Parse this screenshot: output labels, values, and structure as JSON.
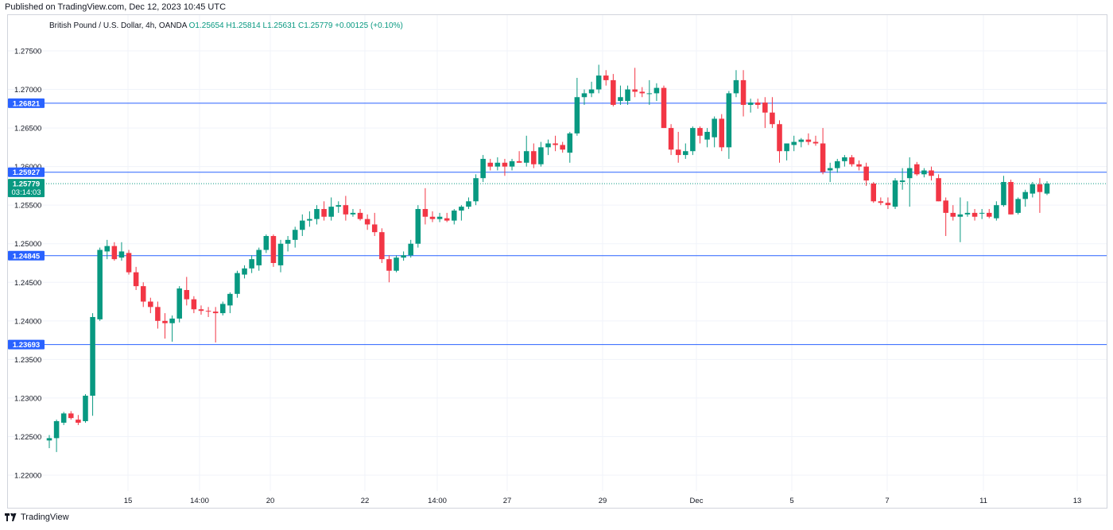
{
  "header": {
    "published": "Published on TradingView.com, Dec 12, 2023 10:45 UTC"
  },
  "legend": {
    "symbol": "British Pound / U.S. Dollar, 4h, OANDA",
    "open": "O1.25654",
    "high": "H1.25814",
    "low": "L1.25631",
    "close": "C1.25779",
    "change": "+0.00125 (+0.10%)"
  },
  "footer": {
    "brand": "TradingView"
  },
  "colors": {
    "up": "#089981",
    "down": "#f23645",
    "hline": "#2962ff",
    "grid": "#f0f3fa"
  },
  "chart_data": {
    "type": "candlestick",
    "ylim": [
      1.2175,
      1.2785
    ],
    "yticks": [
      "1.27500",
      "1.27000",
      "1.26500",
      "1.26000",
      "1.25500",
      "1.25000",
      "1.24500",
      "1.24000",
      "1.23500",
      "1.23000",
      "1.22500",
      "1.22000"
    ],
    "xticks": [
      "15",
      "14:00",
      "20",
      "22",
      "14:00",
      "27",
      "29",
      "Dec",
      "5",
      "7",
      "11",
      "13"
    ],
    "horizontal_lines": [
      1.26821,
      1.25927,
      1.24845,
      1.23693
    ],
    "horizontal_line_labels": [
      "1.26821",
      "1.25927",
      "1.24845",
      "1.23693"
    ],
    "last_price": {
      "value": 1.25779,
      "label": "1.25779",
      "countdown": "03:14:03"
    },
    "candles": [
      {
        "o": 1.2245,
        "h": 1.2252,
        "l": 1.2235,
        "c": 1.2248
      },
      {
        "o": 1.2248,
        "h": 1.2272,
        "l": 1.223,
        "c": 1.227
      },
      {
        "o": 1.2268,
        "h": 1.2282,
        "l": 1.2265,
        "c": 1.228
      },
      {
        "o": 1.228,
        "h": 1.2283,
        "l": 1.2272,
        "c": 1.2274
      },
      {
        "o": 1.2272,
        "h": 1.2278,
        "l": 1.2265,
        "c": 1.2268
      },
      {
        "o": 1.227,
        "h": 1.2305,
        "l": 1.2268,
        "c": 1.2303
      },
      {
        "o": 1.2303,
        "h": 1.241,
        "l": 1.2277,
        "c": 1.2405
      },
      {
        "o": 1.2402,
        "h": 1.2495,
        "l": 1.24,
        "c": 1.2492
      },
      {
        "o": 1.249,
        "h": 1.2505,
        "l": 1.248,
        "c": 1.2497
      },
      {
        "o": 1.2497,
        "h": 1.2502,
        "l": 1.2478,
        "c": 1.248
      },
      {
        "o": 1.2482,
        "h": 1.2502,
        "l": 1.2478,
        "c": 1.249
      },
      {
        "o": 1.2488,
        "h": 1.2492,
        "l": 1.246,
        "c": 1.2463
      },
      {
        "o": 1.2463,
        "h": 1.247,
        "l": 1.244,
        "c": 1.2445
      },
      {
        "o": 1.2445,
        "h": 1.245,
        "l": 1.2418,
        "c": 1.2425
      },
      {
        "o": 1.2425,
        "h": 1.243,
        "l": 1.241,
        "c": 1.2418
      },
      {
        "o": 1.2418,
        "h": 1.2425,
        "l": 1.239,
        "c": 1.24
      },
      {
        "o": 1.24,
        "h": 1.241,
        "l": 1.2377,
        "c": 1.2397
      },
      {
        "o": 1.2397,
        "h": 1.2407,
        "l": 1.2373,
        "c": 1.2403
      },
      {
        "o": 1.2403,
        "h": 1.2445,
        "l": 1.2398,
        "c": 1.2442
      },
      {
        "o": 1.244,
        "h": 1.2457,
        "l": 1.242,
        "c": 1.2428
      },
      {
        "o": 1.2428,
        "h": 1.2432,
        "l": 1.241,
        "c": 1.2415
      },
      {
        "o": 1.2415,
        "h": 1.242,
        "l": 1.2408,
        "c": 1.2413
      },
      {
        "o": 1.2413,
        "h": 1.2418,
        "l": 1.2405,
        "c": 1.2412
      },
      {
        "o": 1.2412,
        "h": 1.2418,
        "l": 1.2372,
        "c": 1.241
      },
      {
        "o": 1.241,
        "h": 1.2425,
        "l": 1.2407,
        "c": 1.2422
      },
      {
        "o": 1.242,
        "h": 1.2437,
        "l": 1.241,
        "c": 1.2435
      },
      {
        "o": 1.2435,
        "h": 1.2465,
        "l": 1.243,
        "c": 1.2462
      },
      {
        "o": 1.246,
        "h": 1.2472,
        "l": 1.2455,
        "c": 1.2468
      },
      {
        "o": 1.2468,
        "h": 1.2485,
        "l": 1.2462,
        "c": 1.248
      },
      {
        "o": 1.2472,
        "h": 1.2495,
        "l": 1.2465,
        "c": 1.2492
      },
      {
        "o": 1.2492,
        "h": 1.2512,
        "l": 1.2488,
        "c": 1.251
      },
      {
        "o": 1.251,
        "h": 1.2512,
        "l": 1.247,
        "c": 1.2475
      },
      {
        "o": 1.2472,
        "h": 1.2505,
        "l": 1.2463,
        "c": 1.25
      },
      {
        "o": 1.25,
        "h": 1.251,
        "l": 1.249,
        "c": 1.2505
      },
      {
        "o": 1.2505,
        "h": 1.2522,
        "l": 1.2495,
        "c": 1.2518
      },
      {
        "o": 1.2518,
        "h": 1.2538,
        "l": 1.251,
        "c": 1.253
      },
      {
        "o": 1.253,
        "h": 1.2542,
        "l": 1.2522,
        "c": 1.2532
      },
      {
        "o": 1.2532,
        "h": 1.255,
        "l": 1.2525,
        "c": 1.2545
      },
      {
        "o": 1.2545,
        "h": 1.2555,
        "l": 1.253,
        "c": 1.2535
      },
      {
        "o": 1.2535,
        "h": 1.256,
        "l": 1.253,
        "c": 1.2548
      },
      {
        "o": 1.2548,
        "h": 1.2555,
        "l": 1.254,
        "c": 1.255
      },
      {
        "o": 1.255,
        "h": 1.2562,
        "l": 1.253,
        "c": 1.2538
      },
      {
        "o": 1.2538,
        "h": 1.2545,
        "l": 1.2535,
        "c": 1.254
      },
      {
        "o": 1.254,
        "h": 1.2545,
        "l": 1.253,
        "c": 1.2532
      },
      {
        "o": 1.2532,
        "h": 1.2538,
        "l": 1.2518,
        "c": 1.2525
      },
      {
        "o": 1.2525,
        "h": 1.254,
        "l": 1.251,
        "c": 1.2515
      },
      {
        "o": 1.2515,
        "h": 1.252,
        "l": 1.2475,
        "c": 1.248
      },
      {
        "o": 1.248,
        "h": 1.2485,
        "l": 1.245,
        "c": 1.2465
      },
      {
        "o": 1.2465,
        "h": 1.2485,
        "l": 1.2463,
        "c": 1.2482
      },
      {
        "o": 1.2482,
        "h": 1.249,
        "l": 1.2478,
        "c": 1.2485
      },
      {
        "o": 1.2485,
        "h": 1.2505,
        "l": 1.2482,
        "c": 1.25
      },
      {
        "o": 1.25,
        "h": 1.255,
        "l": 1.2495,
        "c": 1.2545
      },
      {
        "o": 1.2545,
        "h": 1.2572,
        "l": 1.2525,
        "c": 1.2535
      },
      {
        "o": 1.2535,
        "h": 1.2542,
        "l": 1.2528,
        "c": 1.2532
      },
      {
        "o": 1.2532,
        "h": 1.254,
        "l": 1.2528,
        "c": 1.2535
      },
      {
        "o": 1.2533,
        "h": 1.254,
        "l": 1.2528,
        "c": 1.253
      },
      {
        "o": 1.253,
        "h": 1.2545,
        "l": 1.2525,
        "c": 1.2543
      },
      {
        "o": 1.2543,
        "h": 1.255,
        "l": 1.253,
        "c": 1.2548
      },
      {
        "o": 1.2548,
        "h": 1.256,
        "l": 1.2545,
        "c": 1.2555
      },
      {
        "o": 1.2555,
        "h": 1.259,
        "l": 1.255,
        "c": 1.2585
      },
      {
        "o": 1.2585,
        "h": 1.2615,
        "l": 1.258,
        "c": 1.261
      },
      {
        "o": 1.2605,
        "h": 1.261,
        "l": 1.2595,
        "c": 1.26
      },
      {
        "o": 1.26,
        "h": 1.2612,
        "l": 1.2595,
        "c": 1.2605
      },
      {
        "o": 1.2605,
        "h": 1.261,
        "l": 1.2588,
        "c": 1.26
      },
      {
        "o": 1.26,
        "h": 1.261,
        "l": 1.2595,
        "c": 1.2607
      },
      {
        "o": 1.2607,
        "h": 1.262,
        "l": 1.2605,
        "c": 1.2605
      },
      {
        "o": 1.2605,
        "h": 1.264,
        "l": 1.26,
        "c": 1.262
      },
      {
        "o": 1.262,
        "h": 1.263,
        "l": 1.2598,
        "c": 1.2603
      },
      {
        "o": 1.2603,
        "h": 1.2632,
        "l": 1.26,
        "c": 1.2625
      },
      {
        "o": 1.2625,
        "h": 1.2635,
        "l": 1.2615,
        "c": 1.263
      },
      {
        "o": 1.263,
        "h": 1.264,
        "l": 1.262,
        "c": 1.2628
      },
      {
        "o": 1.2628,
        "h": 1.2632,
        "l": 1.2618,
        "c": 1.2622
      },
      {
        "o": 1.2618,
        "h": 1.2645,
        "l": 1.2605,
        "c": 1.2643
      },
      {
        "o": 1.2643,
        "h": 1.2715,
        "l": 1.264,
        "c": 1.269
      },
      {
        "o": 1.269,
        "h": 1.27,
        "l": 1.268,
        "c": 1.2695
      },
      {
        "o": 1.2695,
        "h": 1.271,
        "l": 1.269,
        "c": 1.27
      },
      {
        "o": 1.27,
        "h": 1.2732,
        "l": 1.2695,
        "c": 1.2718
      },
      {
        "o": 1.2718,
        "h": 1.2725,
        "l": 1.2705,
        "c": 1.2712
      },
      {
        "o": 1.2712,
        "h": 1.272,
        "l": 1.2678,
        "c": 1.268
      },
      {
        "o": 1.2685,
        "h": 1.2705,
        "l": 1.268,
        "c": 1.269
      },
      {
        "o": 1.2685,
        "h": 1.2705,
        "l": 1.268,
        "c": 1.27
      },
      {
        "o": 1.27,
        "h": 1.2728,
        "l": 1.269,
        "c": 1.2697
      },
      {
        "o": 1.2697,
        "h": 1.2703,
        "l": 1.269,
        "c": 1.2695
      },
      {
        "o": 1.2695,
        "h": 1.2712,
        "l": 1.268,
        "c": 1.2695
      },
      {
        "o": 1.2695,
        "h": 1.2708,
        "l": 1.2685,
        "c": 1.2702
      },
      {
        "o": 1.2702,
        "h": 1.2705,
        "l": 1.265,
        "c": 1.265
      },
      {
        "o": 1.265,
        "h": 1.2655,
        "l": 1.2615,
        "c": 1.2622
      },
      {
        "o": 1.2622,
        "h": 1.2645,
        "l": 1.2605,
        "c": 1.2615
      },
      {
        "o": 1.2615,
        "h": 1.263,
        "l": 1.261,
        "c": 1.262
      },
      {
        "o": 1.262,
        "h": 1.2652,
        "l": 1.2615,
        "c": 1.265
      },
      {
        "o": 1.265,
        "h": 1.2652,
        "l": 1.263,
        "c": 1.264
      },
      {
        "o": 1.2635,
        "h": 1.265,
        "l": 1.2625,
        "c": 1.2645
      },
      {
        "o": 1.2638,
        "h": 1.2665,
        "l": 1.2625,
        "c": 1.2662
      },
      {
        "o": 1.2662,
        "h": 1.2668,
        "l": 1.262,
        "c": 1.2625
      },
      {
        "o": 1.2625,
        "h": 1.2698,
        "l": 1.261,
        "c": 1.2695
      },
      {
        "o": 1.2695,
        "h": 1.2725,
        "l": 1.269,
        "c": 1.2712
      },
      {
        "o": 1.2712,
        "h": 1.2725,
        "l": 1.2665,
        "c": 1.268
      },
      {
        "o": 1.268,
        "h": 1.2688,
        "l": 1.267,
        "c": 1.2683
      },
      {
        "o": 1.2683,
        "h": 1.2688,
        "l": 1.2675,
        "c": 1.268
      },
      {
        "o": 1.2683,
        "h": 1.269,
        "l": 1.265,
        "c": 1.267
      },
      {
        "o": 1.267,
        "h": 1.269,
        "l": 1.265,
        "c": 1.2655
      },
      {
        "o": 1.2655,
        "h": 1.266,
        "l": 1.2605,
        "c": 1.262
      },
      {
        "o": 1.262,
        "h": 1.263,
        "l": 1.2608,
        "c": 1.263
      },
      {
        "o": 1.2628,
        "h": 1.264,
        "l": 1.262,
        "c": 1.2632
      },
      {
        "o": 1.2632,
        "h": 1.2637,
        "l": 1.2625,
        "c": 1.2635
      },
      {
        "o": 1.2635,
        "h": 1.2643,
        "l": 1.2628,
        "c": 1.2632
      },
      {
        "o": 1.2632,
        "h": 1.264,
        "l": 1.2627,
        "c": 1.263
      },
      {
        "o": 1.263,
        "h": 1.265,
        "l": 1.259,
        "c": 1.2593
      },
      {
        "o": 1.2595,
        "h": 1.2605,
        "l": 1.258,
        "c": 1.2598
      },
      {
        "o": 1.2598,
        "h": 1.261,
        "l": 1.2592,
        "c": 1.2607
      },
      {
        "o": 1.2607,
        "h": 1.2615,
        "l": 1.26,
        "c": 1.2612
      },
      {
        "o": 1.2612,
        "h": 1.2615,
        "l": 1.26,
        "c": 1.2603
      },
      {
        "o": 1.2603,
        "h": 1.2608,
        "l": 1.2595,
        "c": 1.26
      },
      {
        "o": 1.26,
        "h": 1.2605,
        "l": 1.2575,
        "c": 1.2582
      },
      {
        "o": 1.2578,
        "h": 1.258,
        "l": 1.2553,
        "c": 1.2555
      },
      {
        "o": 1.2555,
        "h": 1.256,
        "l": 1.255,
        "c": 1.2553
      },
      {
        "o": 1.2553,
        "h": 1.256,
        "l": 1.2545,
        "c": 1.255
      },
      {
        "o": 1.2548,
        "h": 1.2585,
        "l": 1.2545,
        "c": 1.2582
      },
      {
        "o": 1.258,
        "h": 1.2598,
        "l": 1.257,
        "c": 1.2582
      },
      {
        "o": 1.2585,
        "h": 1.2612,
        "l": 1.2548,
        "c": 1.2598
      },
      {
        "o": 1.2603,
        "h": 1.2606,
        "l": 1.2588,
        "c": 1.259
      },
      {
        "o": 1.259,
        "h": 1.2598,
        "l": 1.2586,
        "c": 1.2595
      },
      {
        "o": 1.2595,
        "h": 1.26,
        "l": 1.2582,
        "c": 1.2588
      },
      {
        "o": 1.2585,
        "h": 1.259,
        "l": 1.2555,
        "c": 1.2555
      },
      {
        "o": 1.2556,
        "h": 1.256,
        "l": 1.251,
        "c": 1.254
      },
      {
        "o": 1.254,
        "h": 1.255,
        "l": 1.253,
        "c": 1.2535
      },
      {
        "o": 1.2535,
        "h": 1.256,
        "l": 1.2502,
        "c": 1.2538
      },
      {
        "o": 1.2538,
        "h": 1.2555,
        "l": 1.2535,
        "c": 1.254
      },
      {
        "o": 1.254,
        "h": 1.2545,
        "l": 1.253,
        "c": 1.2535
      },
      {
        "o": 1.254,
        "h": 1.2545,
        "l": 1.2532,
        "c": 1.254
      },
      {
        "o": 1.254,
        "h": 1.2545,
        "l": 1.2533,
        "c": 1.2535
      },
      {
        "o": 1.2533,
        "h": 1.2555,
        "l": 1.253,
        "c": 1.255
      },
      {
        "o": 1.255,
        "h": 1.2588,
        "l": 1.2548,
        "c": 1.258
      },
      {
        "o": 1.258,
        "h": 1.2583,
        "l": 1.2538,
        "c": 1.2538
      },
      {
        "o": 1.254,
        "h": 1.256,
        "l": 1.2538,
        "c": 1.2558
      },
      {
        "o": 1.2558,
        "h": 1.257,
        "l": 1.2548,
        "c": 1.2567
      },
      {
        "o": 1.2565,
        "h": 1.258,
        "l": 1.256,
        "c": 1.2577
      },
      {
        "o": 1.2577,
        "h": 1.2585,
        "l": 1.254,
        "c": 1.2567
      },
      {
        "o": 1.2565,
        "h": 1.2581,
        "l": 1.2563,
        "c": 1.2578
      }
    ]
  }
}
